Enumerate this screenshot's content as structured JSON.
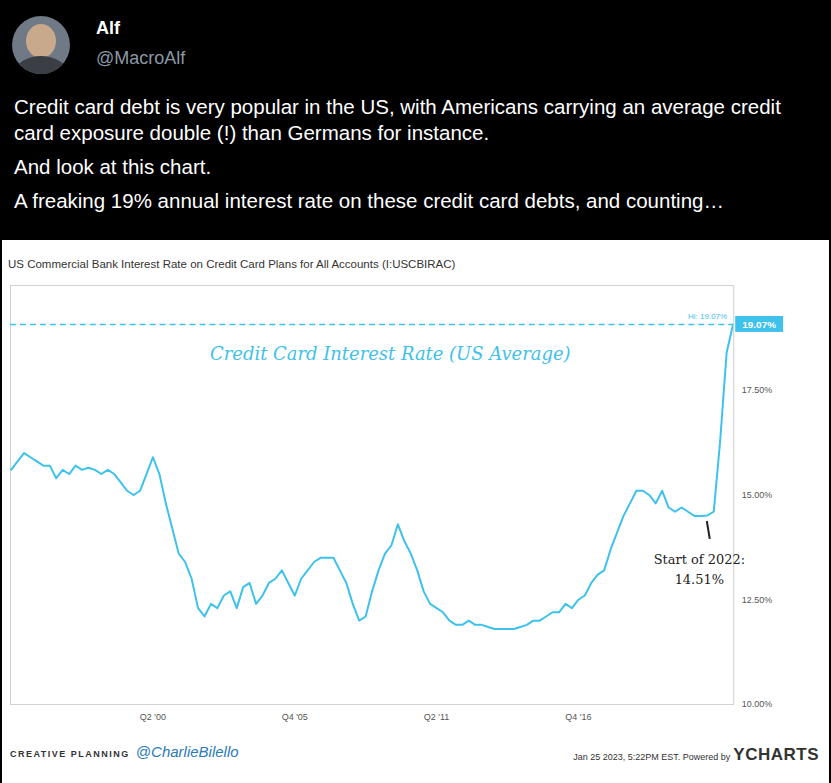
{
  "tweet": {
    "name": "Alf",
    "handle": "@MacroAlf",
    "paragraphs": [
      "Credit card debt is very popular in the US, with Americans carrying an average credit card exposure double (!) than Germans for instance.",
      "And look at this chart.",
      "A freaking 19% annual interest rate on these credit card debts, and counting…"
    ]
  },
  "footer": {
    "left": "CREATIVE PLANNING",
    "left_handle": "@CharlieBilello",
    "right": "Jan 25 2023, 5:22PM EST. Powered by",
    "right_brand": "YCHARTS"
  },
  "chart_data": {
    "type": "line",
    "title": "US Commercial Bank Interest Rate on Credit Card Plans for All Accounts (I:USCBIRAC)",
    "color": "#3ec1ea",
    "grid": false,
    "categories": [
      null,
      null,
      null,
      null,
      null,
      null,
      null,
      null,
      null,
      null,
      null,
      null,
      null,
      null,
      null,
      null,
      null,
      null,
      null,
      null,
      null,
      null,
      "Q2 '00",
      null,
      null,
      null,
      null,
      null,
      null,
      null,
      null,
      null,
      null,
      null,
      null,
      null,
      null,
      null,
      null,
      null,
      null,
      null,
      null,
      null,
      "Q4 '05",
      null,
      null,
      null,
      null,
      null,
      null,
      null,
      null,
      null,
      null,
      null,
      null,
      null,
      null,
      null,
      null,
      null,
      null,
      null,
      null,
      null,
      "Q2 '11",
      null,
      null,
      null,
      null,
      null,
      null,
      null,
      null,
      null,
      null,
      null,
      null,
      null,
      null,
      null,
      null,
      null,
      null,
      null,
      null,
      null,
      "Q4 '16",
      null,
      null,
      null,
      null,
      null,
      null,
      null,
      null,
      null,
      null,
      null,
      null,
      null,
      null,
      null,
      null,
      null,
      null,
      null,
      null,
      null,
      null,
      null,
      null
    ],
    "values": [
      15.6,
      15.8,
      16.0,
      15.9,
      15.8,
      15.7,
      15.7,
      15.4,
      15.6,
      15.5,
      15.7,
      15.6,
      15.65,
      15.6,
      15.5,
      15.6,
      15.5,
      15.3,
      15.1,
      15.0,
      15.1,
      15.5,
      15.9,
      15.5,
      14.8,
      14.2,
      13.6,
      13.4,
      13.0,
      12.3,
      12.1,
      12.4,
      12.3,
      12.6,
      12.7,
      12.3,
      12.8,
      12.9,
      12.4,
      12.6,
      12.9,
      13.0,
      13.2,
      12.9,
      12.6,
      13.0,
      13.2,
      13.4,
      13.5,
      13.5,
      13.5,
      13.2,
      12.9,
      12.4,
      12.0,
      12.1,
      12.7,
      13.2,
      13.6,
      13.8,
      14.3,
      13.9,
      13.6,
      13.2,
      12.7,
      12.4,
      12.3,
      12.2,
      12.0,
      11.9,
      11.9,
      12.0,
      11.9,
      11.9,
      11.85,
      11.8,
      11.8,
      11.8,
      11.8,
      11.85,
      11.9,
      12.0,
      12.0,
      12.1,
      12.2,
      12.2,
      12.4,
      12.3,
      12.5,
      12.6,
      12.9,
      13.1,
      13.2,
      13.7,
      14.1,
      14.5,
      14.8,
      15.1,
      15.1,
      15.0,
      14.8,
      15.1,
      14.7,
      14.6,
      14.7,
      14.6,
      14.5,
      14.5,
      14.51,
      14.6,
      16.3,
      18.4,
      19.07
    ],
    "ylim": [
      10,
      20
    ],
    "yticks": [
      {
        "value": 10,
        "label": "10.00%"
      },
      {
        "value": 12.5,
        "label": "12.50%"
      },
      {
        "value": 15,
        "label": "15.00%"
      },
      {
        "value": 17.5,
        "label": "17.50%"
      }
    ],
    "high": {
      "value": 19.07,
      "label": "Hi: 19.07%",
      "badge": "19.07%"
    },
    "annotations": [
      {
        "text": "Credit Card Interest Rate (US Average)"
      },
      {
        "lines": [
          "Start of 2022:",
          "14.51%"
        ],
        "value": 14.51
      }
    ]
  }
}
